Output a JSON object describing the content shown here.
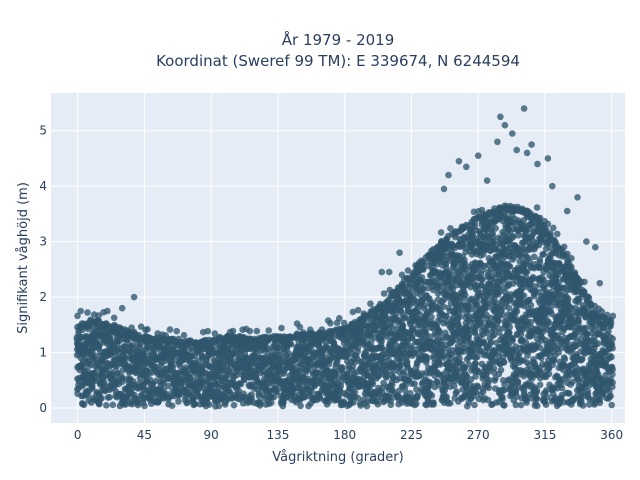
{
  "chart_data": {
    "type": "scatter",
    "title_line1": "År 1979 - 2019",
    "title_line2": "Koordinat (Sweref 99 TM): E 339674, N 6244594",
    "xlabel": "Vågriktning (grader)",
    "ylabel": "Signifikant våghöjd (m)",
    "xlim": [
      -18,
      369
    ],
    "ylim": [
      -0.27,
      5.68
    ],
    "xticks": [
      0,
      45,
      90,
      135,
      180,
      225,
      270,
      315,
      360
    ],
    "xtick_labels": [
      "0",
      "45",
      "90",
      "135",
      "180",
      "225",
      "270",
      "315",
      "360"
    ],
    "yticks": [
      0,
      1,
      2,
      3,
      4,
      5
    ],
    "ytick_labels": [
      "0",
      "1",
      "2",
      "3",
      "4",
      "5"
    ],
    "grid": true,
    "marker_color": "#2f566d",
    "background_color": "#e5ecf6",
    "envelope": {
      "x": [
        0,
        10,
        20,
        30,
        40,
        50,
        60,
        70,
        80,
        90,
        100,
        110,
        120,
        130,
        140,
        150,
        160,
        170,
        180,
        190,
        200,
        210,
        220,
        230,
        240,
        250,
        260,
        270,
        280,
        290,
        300,
        310,
        320,
        330,
        340,
        350,
        360
      ],
      "y_max": [
        1.5,
        1.6,
        1.55,
        1.45,
        1.35,
        1.3,
        1.25,
        1.25,
        1.2,
        1.25,
        1.3,
        1.3,
        1.25,
        1.3,
        1.3,
        1.35,
        1.35,
        1.4,
        1.45,
        1.6,
        1.8,
        2.0,
        2.3,
        2.6,
        2.9,
        3.1,
        3.3,
        3.45,
        3.6,
        3.65,
        3.6,
        3.45,
        3.1,
        2.7,
        2.2,
        1.7,
        1.6
      ]
    },
    "outliers": [
      {
        "x": 38,
        "y": 2.0
      },
      {
        "x": 30,
        "y": 1.8
      },
      {
        "x": 2,
        "y": 1.75
      },
      {
        "x": 20,
        "y": 1.75
      },
      {
        "x": 205,
        "y": 2.45
      },
      {
        "x": 210,
        "y": 2.45
      },
      {
        "x": 217,
        "y": 2.8
      },
      {
        "x": 247,
        "y": 3.95
      },
      {
        "x": 250,
        "y": 4.2
      },
      {
        "x": 257,
        "y": 4.45
      },
      {
        "x": 262,
        "y": 4.35
      },
      {
        "x": 270,
        "y": 4.55
      },
      {
        "x": 276,
        "y": 4.1
      },
      {
        "x": 283,
        "y": 4.8
      },
      {
        "x": 285,
        "y": 5.25
      },
      {
        "x": 288,
        "y": 5.1
      },
      {
        "x": 293,
        "y": 4.95
      },
      {
        "x": 296,
        "y": 4.65
      },
      {
        "x": 301,
        "y": 5.4
      },
      {
        "x": 303,
        "y": 4.6
      },
      {
        "x": 306,
        "y": 4.75
      },
      {
        "x": 310,
        "y": 4.4
      },
      {
        "x": 317,
        "y": 4.5
      },
      {
        "x": 320,
        "y": 4.0
      },
      {
        "x": 330,
        "y": 3.55
      },
      {
        "x": 337,
        "y": 3.8
      },
      {
        "x": 343,
        "y": 3.0
      },
      {
        "x": 349,
        "y": 2.9
      },
      {
        "x": 352,
        "y": 2.25
      }
    ]
  }
}
